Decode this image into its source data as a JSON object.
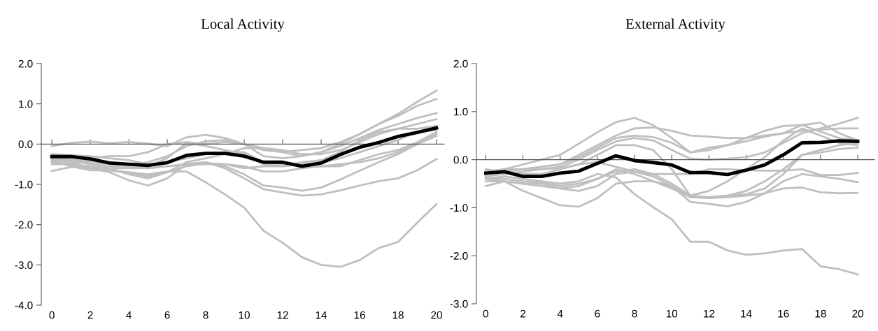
{
  "chart_data": [
    {
      "type": "line",
      "title": "Local Activity",
      "x": [
        0,
        1,
        2,
        3,
        4,
        5,
        6,
        7,
        8,
        9,
        10,
        11,
        12,
        13,
        14,
        15,
        16,
        17,
        18,
        19,
        20
      ],
      "xlim": [
        -0.55,
        20.4
      ],
      "xticks": [
        0,
        2,
        4,
        6,
        8,
        10,
        12,
        14,
        16,
        18,
        20
      ],
      "ylim": [
        -4.0,
        2.0
      ],
      "yticks": [
        {
          "value": -4.0,
          "label": "-4.0"
        },
        {
          "value": -3.0,
          "label": "-3.0"
        },
        {
          "value": -2.0,
          "label": "-2.0"
        },
        {
          "value": -1.0,
          "label": "-1.0"
        },
        {
          "value": 0.0,
          "label": "0.0"
        },
        {
          "value": 1.0,
          "label": "1.0"
        },
        {
          "value": 2.0,
          "label": "2.0"
        }
      ],
      "marker": "none",
      "line_style": "solid",
      "series": [
        {
          "color": "#bfbfbf",
          "values": [
            -0.45,
            -0.5,
            -0.6,
            -0.65,
            -0.7,
            -0.75,
            -0.68,
            -0.68,
            -0.95,
            -1.25,
            -1.58,
            -2.15,
            -2.45,
            -2.81,
            -3.0,
            -3.05,
            -2.88,
            -2.58,
            -2.43,
            -1.95,
            -1.49
          ]
        },
        {
          "color": "#bfbfbf",
          "values": [
            -0.5,
            -0.5,
            -0.55,
            -0.6,
            -0.6,
            -0.6,
            -0.55,
            -0.5,
            -0.45,
            -0.6,
            -0.85,
            -1.12,
            -1.2,
            -1.28,
            -1.25,
            -1.15,
            -1.03,
            -0.92,
            -0.85,
            -0.65,
            -0.37
          ]
        },
        {
          "color": "#bfbfbf",
          "values": [
            -0.4,
            -0.45,
            -0.6,
            -0.7,
            -0.9,
            -1.03,
            -0.85,
            -0.5,
            -0.45,
            -0.55,
            -0.75,
            -1.03,
            -1.08,
            -1.16,
            -1.08,
            -0.88,
            -0.66,
            -0.45,
            -0.25,
            0.0,
            0.25
          ]
        },
        {
          "color": "#bfbfbf",
          "values": [
            -0.05,
            0.03,
            0.06,
            0.02,
            0.05,
            0.01,
            -0.05,
            0.17,
            0.23,
            0.15,
            0.0,
            -0.15,
            -0.2,
            -0.15,
            -0.1,
            0.05,
            0.25,
            0.5,
            0.75,
            1.05,
            1.33
          ]
        },
        {
          "color": "#bfbfbf",
          "values": [
            -0.3,
            -0.3,
            -0.35,
            -0.3,
            -0.3,
            -0.2,
            0.0,
            0.05,
            0.0,
            0.05,
            0.0,
            -0.3,
            -0.35,
            -0.3,
            -0.2,
            0.0,
            0.25,
            0.5,
            0.7,
            0.95,
            1.12
          ]
        },
        {
          "color": "#bfbfbf",
          "values": [
            -0.35,
            -0.38,
            -0.4,
            -0.45,
            -0.5,
            -0.45,
            -0.3,
            -0.05,
            0.07,
            0.1,
            0.0,
            -0.1,
            -0.2,
            -0.3,
            -0.2,
            -0.05,
            0.15,
            0.35,
            0.5,
            0.65,
            0.77
          ]
        },
        {
          "color": "#bfbfbf",
          "values": [
            -0.4,
            -0.42,
            -0.5,
            -0.55,
            -0.6,
            -0.55,
            -0.35,
            0.03,
            -0.05,
            -0.15,
            -0.25,
            -0.5,
            -0.55,
            -0.45,
            -0.4,
            -0.2,
            0.1,
            0.3,
            0.38,
            0.5,
            0.62
          ]
        },
        {
          "color": "#bfbfbf",
          "values": [
            -0.42,
            -0.55,
            -0.65,
            -0.65,
            -0.72,
            -0.8,
            -0.7,
            -0.45,
            -0.35,
            -0.25,
            -0.1,
            -0.1,
            -0.15,
            -0.25,
            -0.25,
            -0.15,
            0.05,
            0.25,
            0.38,
            0.38,
            0.45
          ]
        },
        {
          "color": "#bfbfbf",
          "values": [
            -0.67,
            -0.57,
            -0.6,
            -0.6,
            -0.75,
            -0.85,
            -0.7,
            -0.55,
            -0.48,
            -0.5,
            -0.55,
            -0.68,
            -0.68,
            -0.6,
            -0.55,
            -0.55,
            -0.4,
            -0.25,
            -0.15,
            0.05,
            0.3
          ]
        },
        {
          "color": "#bfbfbf",
          "values": [
            -0.25,
            -0.28,
            -0.3,
            -0.35,
            -0.4,
            -0.5,
            -0.45,
            -0.35,
            -0.25,
            -0.2,
            -0.2,
            -0.45,
            -0.5,
            -0.5,
            -0.55,
            -0.5,
            -0.45,
            -0.35,
            -0.2,
            0.0,
            0.2
          ]
        },
        {
          "color": "#bfbfbf",
          "values": [
            -0.35,
            -0.4,
            -0.45,
            -0.5,
            -0.55,
            -0.6,
            -0.55,
            -0.5,
            -0.5,
            -0.5,
            -0.6,
            -0.55,
            -0.55,
            -0.5,
            -0.45,
            -0.35,
            -0.2,
            -0.05,
            0.1,
            0.3,
            0.35
          ]
        },
        {
          "color": "#000000",
          "values": [
            -0.31,
            -0.31,
            -0.37,
            -0.47,
            -0.5,
            -0.53,
            -0.46,
            -0.28,
            -0.23,
            -0.23,
            -0.3,
            -0.45,
            -0.45,
            -0.55,
            -0.47,
            -0.26,
            -0.08,
            0.04,
            0.19,
            0.29,
            0.4
          ]
        }
      ]
    },
    {
      "type": "line",
      "title": "External Activity",
      "x": [
        0,
        1,
        2,
        3,
        4,
        5,
        6,
        7,
        8,
        9,
        10,
        11,
        12,
        13,
        14,
        15,
        16,
        17,
        18,
        19,
        20
      ],
      "xlim": [
        -0.5,
        20.9
      ],
      "xticks": [
        0,
        2,
        4,
        6,
        8,
        10,
        12,
        14,
        16,
        18,
        20
      ],
      "ylim": [
        -3.0,
        2.0
      ],
      "yticks": [
        {
          "value": -3.0,
          "label": "-3.0"
        },
        {
          "value": -2.0,
          "label": "-2.0"
        },
        {
          "value": -1.0,
          "label": "-1.0"
        },
        {
          "value": 0.0,
          "label": "0.0"
        },
        {
          "value": 1.0,
          "label": "1.0"
        },
        {
          "value": 2.0,
          "label": "2.0"
        }
      ],
      "marker": "none",
      "line_style": "solid",
      "series": [
        {
          "color": "#bfbfbf",
          "values": [
            -0.4,
            -0.35,
            -0.4,
            -0.45,
            -0.5,
            -0.45,
            -0.3,
            -0.37,
            -0.72,
            -0.99,
            -1.24,
            -1.71,
            -1.71,
            -1.89,
            -1.98,
            -1.95,
            -1.89,
            -1.86,
            -2.22,
            -2.28,
            -2.39
          ]
        },
        {
          "color": "#bfbfbf",
          "values": [
            -0.3,
            -0.2,
            -0.1,
            0.0,
            0.1,
            0.33,
            0.57,
            0.78,
            0.87,
            0.72,
            0.45,
            0.15,
            0.25,
            0.3,
            0.45,
            0.6,
            0.7,
            0.72,
            0.58,
            0.45,
            0.4
          ]
        },
        {
          "color": "#bfbfbf",
          "values": [
            -0.3,
            -0.25,
            -0.2,
            -0.15,
            -0.1,
            0.1,
            0.3,
            0.5,
            0.65,
            0.67,
            0.6,
            0.5,
            0.48,
            0.45,
            0.45,
            0.5,
            0.55,
            0.6,
            0.62,
            0.65,
            0.65
          ]
        },
        {
          "color": "#bfbfbf",
          "values": [
            -0.25,
            -0.2,
            -0.2,
            -0.15,
            -0.1,
            0.05,
            0.25,
            0.45,
            0.5,
            0.47,
            0.35,
            0.15,
            0.2,
            0.3,
            0.38,
            0.48,
            0.55,
            0.72,
            0.77,
            0.55,
            0.4
          ]
        },
        {
          "color": "#bfbfbf",
          "values": [
            -0.35,
            -0.3,
            -0.25,
            -0.2,
            -0.15,
            0.0,
            0.2,
            0.38,
            0.45,
            0.4,
            0.2,
            0.02,
            0.0,
            0.02,
            0.05,
            0.15,
            0.35,
            0.55,
            0.65,
            0.75,
            0.87
          ]
        },
        {
          "color": "#bfbfbf",
          "values": [
            -0.2,
            -0.25,
            -0.3,
            -0.3,
            -0.2,
            -0.1,
            0.1,
            0.3,
            0.3,
            0.2,
            -0.2,
            -0.75,
            -0.65,
            -0.45,
            -0.2,
            0.05,
            0.4,
            0.65,
            0.5,
            0.35,
            0.3
          ]
        },
        {
          "color": "#bfbfbf",
          "values": [
            -0.4,
            -0.45,
            -0.5,
            -0.55,
            -0.6,
            -0.65,
            -0.55,
            -0.3,
            -0.25,
            -0.35,
            -0.55,
            -0.88,
            -0.92,
            -0.97,
            -0.88,
            -0.7,
            -0.45,
            -0.3,
            -0.35,
            -0.4,
            -0.47
          ]
        },
        {
          "color": "#bfbfbf",
          "values": [
            -0.45,
            -0.45,
            -0.65,
            -0.8,
            -0.95,
            -0.98,
            -0.8,
            -0.5,
            -0.45,
            -0.45,
            -0.55,
            -0.78,
            -0.8,
            -0.78,
            -0.75,
            -0.7,
            -0.6,
            -0.58,
            -0.68,
            -0.7,
            -0.69
          ]
        },
        {
          "color": "#bfbfbf",
          "values": [
            -0.25,
            -0.2,
            -0.2,
            -0.2,
            -0.18,
            -0.1,
            -0.05,
            -0.15,
            -0.25,
            -0.3,
            -0.3,
            -0.3,
            -0.2,
            -0.2,
            -0.22,
            -0.23,
            -0.23,
            -0.2,
            -0.32,
            -0.32,
            -0.28
          ]
        },
        {
          "color": "#bfbfbf",
          "values": [
            -0.55,
            -0.45,
            -0.5,
            -0.5,
            -0.6,
            -0.55,
            -0.4,
            -0.2,
            -0.3,
            -0.45,
            -0.6,
            -0.78,
            -0.78,
            -0.75,
            -0.65,
            -0.45,
            -0.2,
            0.1,
            0.15,
            0.22,
            0.25
          ]
        },
        {
          "color": "#bfbfbf",
          "values": [
            -0.38,
            -0.4,
            -0.45,
            -0.48,
            -0.55,
            -0.5,
            -0.4,
            -0.25,
            -0.2,
            -0.3,
            -0.5,
            -0.75,
            -0.78,
            -0.75,
            -0.72,
            -0.6,
            -0.3,
            0.1,
            0.2,
            0.3,
            0.35
          ]
        },
        {
          "color": "#000000",
          "values": [
            -0.28,
            -0.25,
            -0.35,
            -0.35,
            -0.28,
            -0.24,
            -0.08,
            0.08,
            -0.02,
            -0.06,
            -0.11,
            -0.27,
            -0.27,
            -0.31,
            -0.22,
            -0.11,
            0.1,
            0.35,
            0.36,
            0.39,
            0.38
          ]
        }
      ]
    }
  ]
}
